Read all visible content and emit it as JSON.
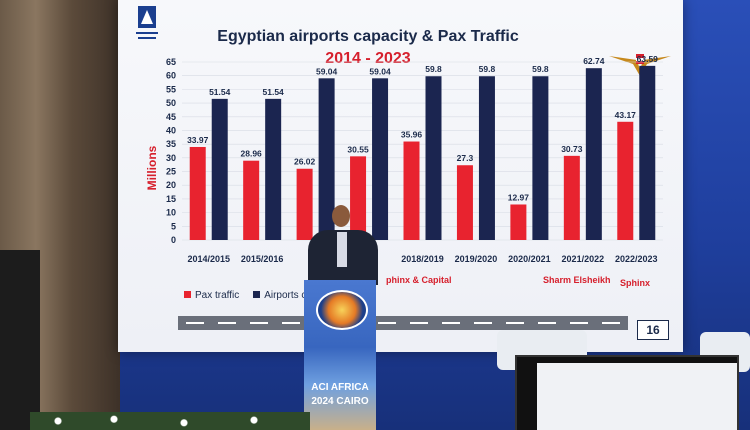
{
  "slide": {
    "title_line1": "Egyptian airports capacity & Pax Traffic",
    "title_line2": "2014 - 2023",
    "page_number": "16",
    "aci_logo_text": "AIRPORTS COUNCIL",
    "legend": {
      "pax": "Pax traffic",
      "airports": "Airports c"
    },
    "notes": {
      "capital": "phinx & Capital",
      "sharm": "Sharm Elsheikh",
      "sphinx": "Sphinx"
    }
  },
  "podium": {
    "line1": "ACI AFRICA",
    "line2": "2024 CAIRO"
  },
  "colors": {
    "pax": "#e8232f",
    "capacity": "#1b2550",
    "text_red": "#d61f2c"
  },
  "chart_data": {
    "type": "bar",
    "title": "Egyptian airports capacity & Pax Traffic",
    "subtitle": "2014 - 2023",
    "ylabel": "Millions",
    "ylim": [
      0,
      65
    ],
    "yticks": [
      0,
      5,
      10,
      15,
      20,
      25,
      30,
      35,
      40,
      45,
      50,
      55,
      60,
      65
    ],
    "categories": [
      "2014/2015",
      "2015/2016",
      "2016/2017",
      "2017/2018",
      "2018/2019",
      "2019/2020",
      "2020/2021",
      "2021/2022",
      "2022/2023"
    ],
    "category_labels_visible": [
      "2014/2015",
      "2015/2016",
      "201",
      "18",
      "2018/2019",
      "2019/2020",
      "2020/2021",
      "2021/2022",
      "2022/2023"
    ],
    "series": [
      {
        "name": "Pax traffic",
        "values": [
          33.97,
          28.96,
          26.02,
          30.55,
          35.96,
          27.3,
          12.97,
          30.73,
          43.17
        ]
      },
      {
        "name": "Airports capacity",
        "values": [
          51.54,
          51.54,
          59.04,
          59.04,
          59.8,
          59.8,
          59.8,
          62.74,
          63.59
        ]
      }
    ],
    "legend_position": "bottom-left"
  }
}
